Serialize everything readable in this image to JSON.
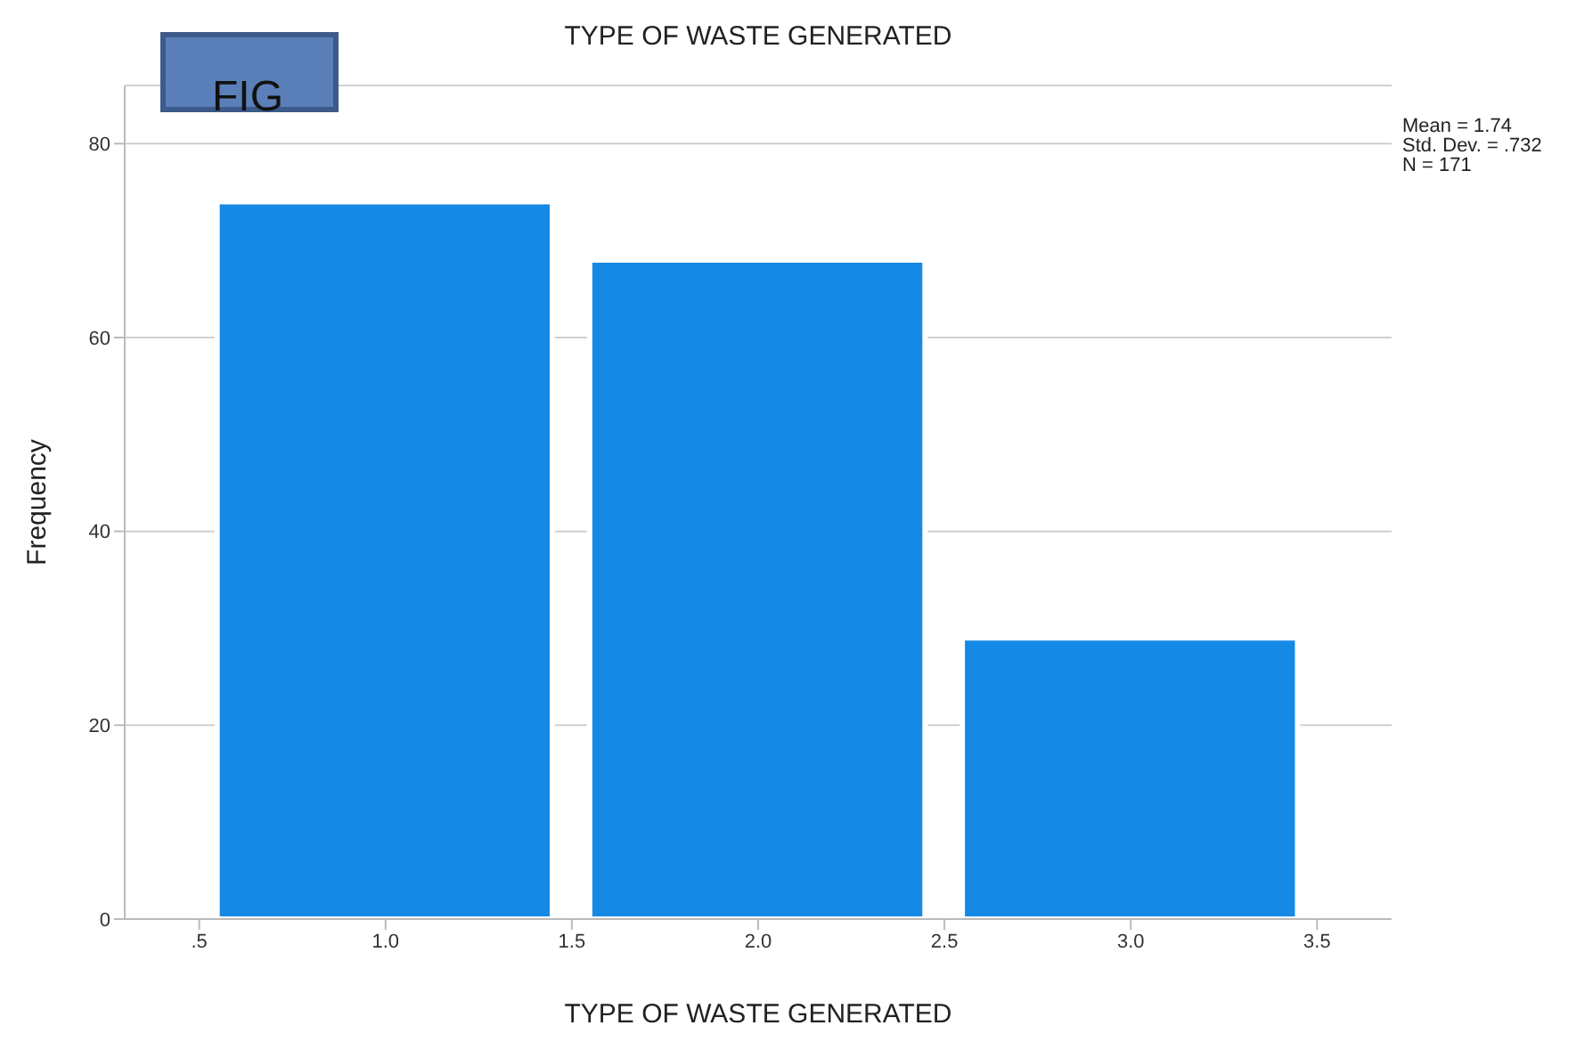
{
  "chart_data": {
    "type": "histogram",
    "title": "TYPE OF WASTE GENERATED",
    "xlabel": "TYPE OF WASTE GENERATED",
    "ylabel": "Frequency",
    "bins": [
      0.5,
      1.5,
      2.5,
      3.5
    ],
    "values": [
      74,
      68,
      29
    ],
    "color": "#1589e4",
    "xlim": [
      0.3,
      3.7
    ],
    "xticks": [
      {
        "value": 0.5,
        "label": ".5"
      },
      {
        "value": 1,
        "label": "1.0"
      },
      {
        "value": 1.5,
        "label": "1.5"
      },
      {
        "value": 2,
        "label": "2.0"
      },
      {
        "value": 2.5,
        "label": "2.5"
      },
      {
        "value": 3,
        "label": "3.0"
      },
      {
        "value": 3.5,
        "label": "3.5"
      }
    ],
    "ylim": [
      0,
      86
    ],
    "yticks": [
      0,
      20,
      40,
      60,
      80
    ],
    "grid": "y",
    "annotations": [
      "Mean = 1.74",
      "Std. Dev. = .732",
      "N = 171",
      "FIG"
    ]
  }
}
